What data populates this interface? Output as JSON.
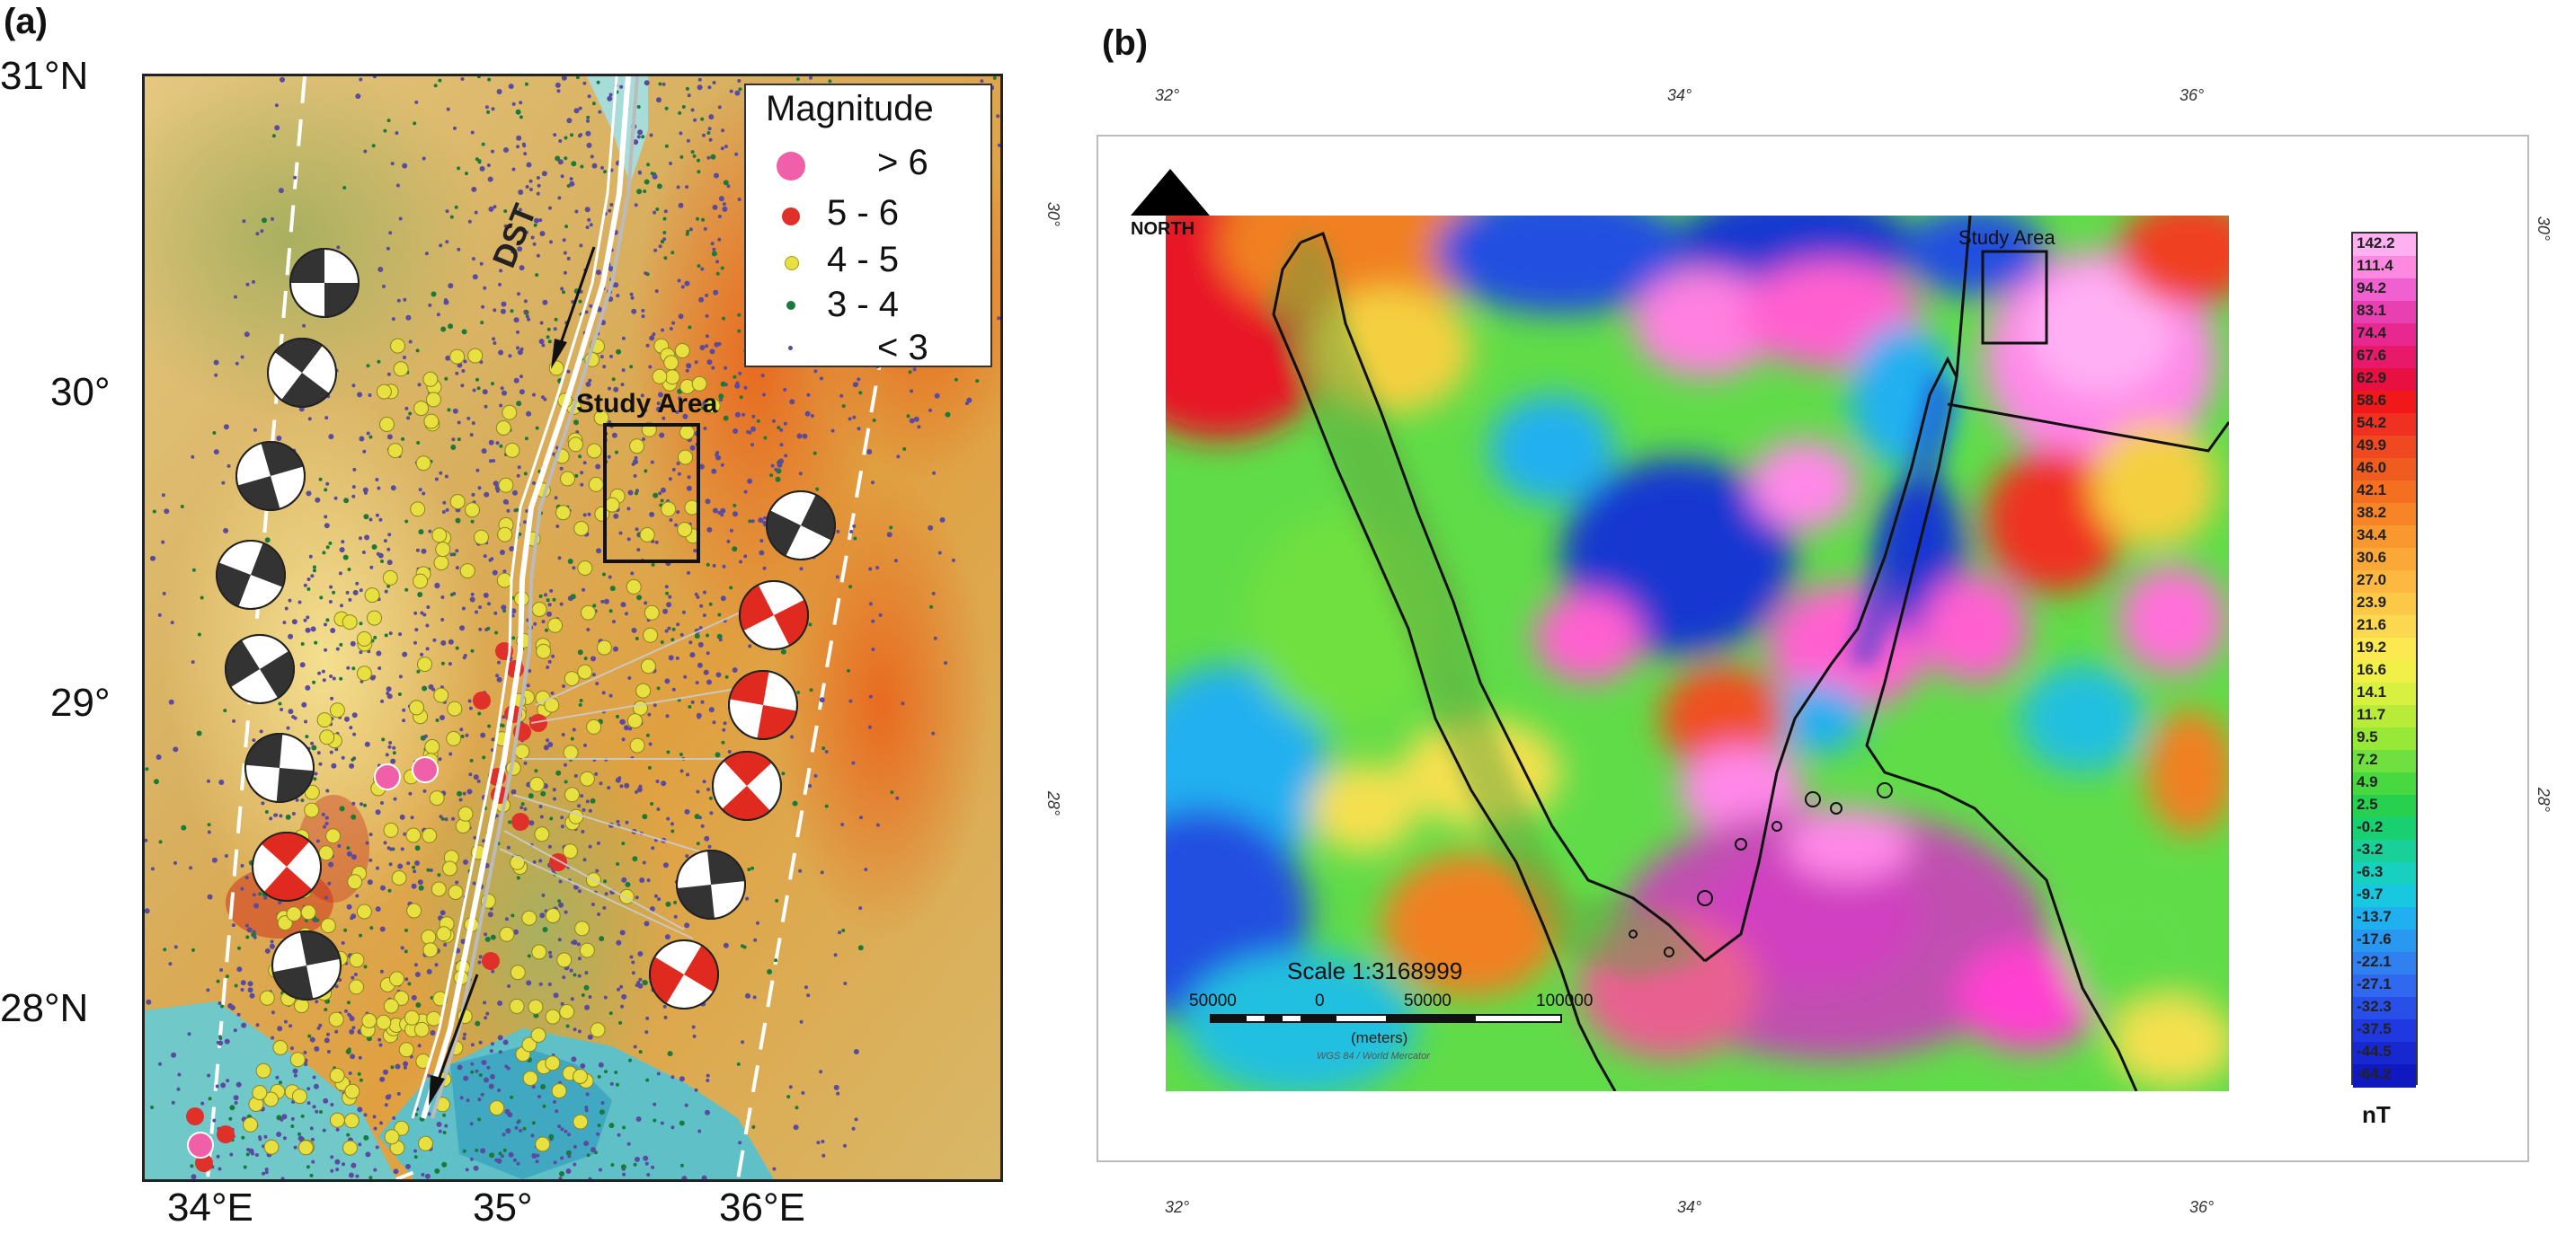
{
  "panel_a": {
    "label": "(a)",
    "lat_labels": [
      "31°N",
      "30°",
      "29°",
      "28°N"
    ],
    "lon_labels": [
      "34°E",
      "35°",
      "36°E"
    ],
    "legend": {
      "title": "Magnitude",
      "items": [
        {
          "label": "> 6",
          "color": "#f060a8"
        },
        {
          "label": "5  -  6",
          "color": "#e0302a"
        },
        {
          "label": "4  -  5",
          "color": "#e8e040"
        },
        {
          "label": "3  -  4",
          "color": "#1a7a3a"
        },
        {
          "label": "< 3",
          "color": "#5a4aa0"
        }
      ]
    },
    "fault_label": "DST",
    "study_area_label": "Study Area"
  },
  "panel_b": {
    "label": "(b)",
    "top_lon_labels": [
      "32°",
      "34°",
      "36°"
    ],
    "bottom_lon_labels": [
      "32°",
      "34°",
      "36°"
    ],
    "left_lat_labels": [
      "30°",
      "28°"
    ],
    "right_lat_labels": [
      "30°",
      "28°"
    ],
    "north_label": "NORTH",
    "study_area_label": "Study Area",
    "scale": {
      "title": "Scale 1:3168999",
      "ticks": [
        "50000",
        "0",
        "50000",
        "100000"
      ],
      "unit": "(meters)",
      "projection": "WGS 84 / World Mercator"
    },
    "colorbar": {
      "unit": "nT",
      "ticks": [
        "142.2",
        "111.4",
        "94.2",
        "83.1",
        "74.4",
        "67.6",
        "62.9",
        "58.6",
        "54.2",
        "49.9",
        "46.0",
        "42.1",
        "38.2",
        "34.4",
        "30.6",
        "27.0",
        "23.9",
        "21.6",
        "19.2",
        "16.6",
        "14.1",
        "11.7",
        "9.5",
        "7.2",
        "4.9",
        "2.5",
        "-0.2",
        "-3.2",
        "-6.3",
        "-9.7",
        "-13.7",
        "-17.6",
        "-22.1",
        "-27.1",
        "-32.3",
        "-37.5",
        "-44.5",
        "-64.2"
      ],
      "colors": [
        "#ffb0f0",
        "#ff88e0",
        "#f060d0",
        "#e840b0",
        "#e82890",
        "#e8186a",
        "#e81040",
        "#f01818",
        "#f03020",
        "#f04820",
        "#f05c20",
        "#f47020",
        "#f88428",
        "#fa9830",
        "#fca838",
        "#fcb840",
        "#fcc848",
        "#fcd850",
        "#fce850",
        "#f0f048",
        "#d8f040",
        "#b8ec38",
        "#98e838",
        "#70e040",
        "#48d840",
        "#28d050",
        "#18d070",
        "#18d098",
        "#18d0c0",
        "#18c8e0",
        "#20b0f0",
        "#2898f0",
        "#3080f0",
        "#3068f0",
        "#2850e8",
        "#2038e0",
        "#1828d0",
        "#1018c0"
      ]
    }
  },
  "colors": {
    "eq_gt6": "#f060a8",
    "eq_5_6": "#e0302a",
    "eq_4_5": "#e8e040",
    "eq_3_4": "#1a7a3a",
    "eq_lt3": "#5a4aa0"
  }
}
